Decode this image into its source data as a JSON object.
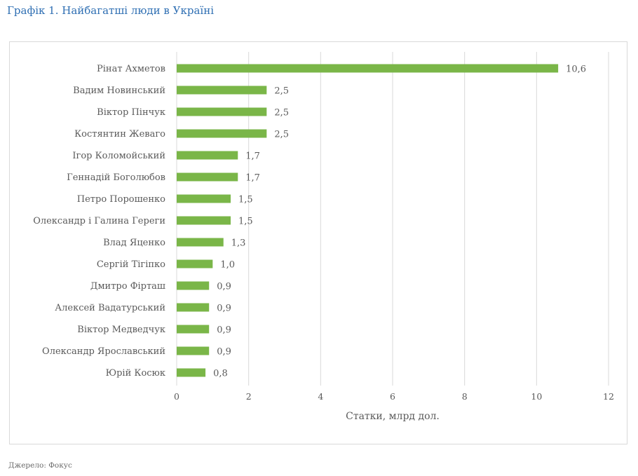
{
  "figure": {
    "title": "Графік 1. Найбагатші люди в Україні",
    "source": "Джерело: Фокус"
  },
  "colors": {
    "bar": "#7ab648",
    "grid": "#d9d9d9",
    "text": "#595959",
    "title": "#2f6fb3"
  },
  "chart_data": {
    "type": "bar",
    "orientation": "horizontal",
    "categories": [
      "Рінат Ахметов",
      "Вадим Новинський",
      "Віктор Пінчук",
      "Костянтин Жеваго",
      "Ігор Коломойський",
      "Геннадій Боголюбов",
      "Петро Порошенко",
      "Олександр і Галина Гереги",
      "Влад Яценко",
      "Сергій Тігіпко",
      "Дмитро Фірташ",
      "Алексей Вадатурський",
      "Віктор Медведчук",
      "Олександр Ярославський",
      "Юрій Косюк"
    ],
    "values": [
      10.6,
      2.5,
      2.5,
      2.5,
      1.7,
      1.7,
      1.5,
      1.5,
      1.3,
      1.0,
      0.9,
      0.9,
      0.9,
      0.9,
      0.8
    ],
    "value_labels": [
      "10,6",
      "2,5",
      "2,5",
      "2,5",
      "1,7",
      "1,7",
      "1,5",
      "1,5",
      "1,3",
      "1,0",
      "0,9",
      "0,9",
      "0,9",
      "0,9",
      "0,8"
    ],
    "xlabel": "Статки, млрд дол.",
    "xlim": [
      0,
      12
    ],
    "xticks": [
      0,
      2,
      4,
      6,
      8,
      10,
      12
    ],
    "grid": "vertical",
    "legend": "none"
  }
}
